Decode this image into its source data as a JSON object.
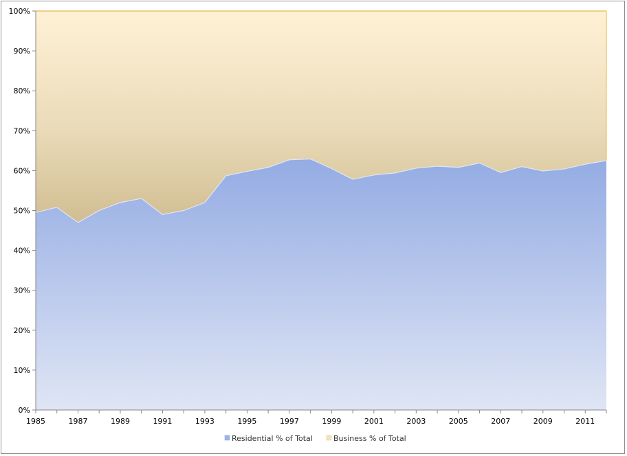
{
  "chart_data": {
    "type": "area",
    "stacked": true,
    "percent": true,
    "x": [
      1985,
      1986,
      1987,
      1988,
      1989,
      1990,
      1991,
      1992,
      1993,
      1994,
      1995,
      1996,
      1997,
      1998,
      1999,
      2000,
      2001,
      2002,
      2003,
      2004,
      2005,
      2006,
      2007,
      2008,
      2009,
      2010,
      2011,
      2012
    ],
    "series": [
      {
        "name": "Residential % of Total",
        "color": "#9db3e6",
        "values": [
          49.5,
          50.8,
          47.0,
          50.0,
          52.0,
          53.0,
          49.0,
          50.0,
          52.0,
          58.7,
          59.8,
          60.8,
          62.7,
          62.9,
          60.5,
          57.8,
          58.9,
          59.4,
          60.6,
          61.1,
          60.8,
          61.9,
          59.5,
          61.0,
          59.9,
          60.4,
          61.6,
          62.5
        ]
      },
      {
        "name": "Business % of Total",
        "color": "#f5e3b8",
        "values": [
          50.5,
          49.2,
          53.0,
          50.0,
          48.0,
          47.0,
          51.0,
          50.0,
          48.0,
          41.3,
          40.2,
          39.2,
          37.3,
          37.1,
          39.5,
          42.2,
          41.1,
          40.6,
          39.4,
          38.9,
          39.2,
          38.1,
          40.5,
          39.0,
          40.1,
          39.6,
          38.4,
          37.5
        ]
      }
    ],
    "xticks": [
      "1985",
      "1987",
      "1989",
      "1991",
      "1993",
      "1995",
      "1997",
      "1999",
      "2001",
      "2003",
      "2005",
      "2007",
      "2009",
      "2011"
    ],
    "yticks": [
      "0%",
      "10%",
      "20%",
      "30%",
      "40%",
      "50%",
      "60%",
      "70%",
      "80%",
      "90%",
      "100%"
    ],
    "xlim": [
      1985,
      2012
    ],
    "ylim": [
      0,
      100
    ],
    "grid": false,
    "legend": "bottom",
    "title": "",
    "xlabel": "",
    "ylabel": ""
  }
}
